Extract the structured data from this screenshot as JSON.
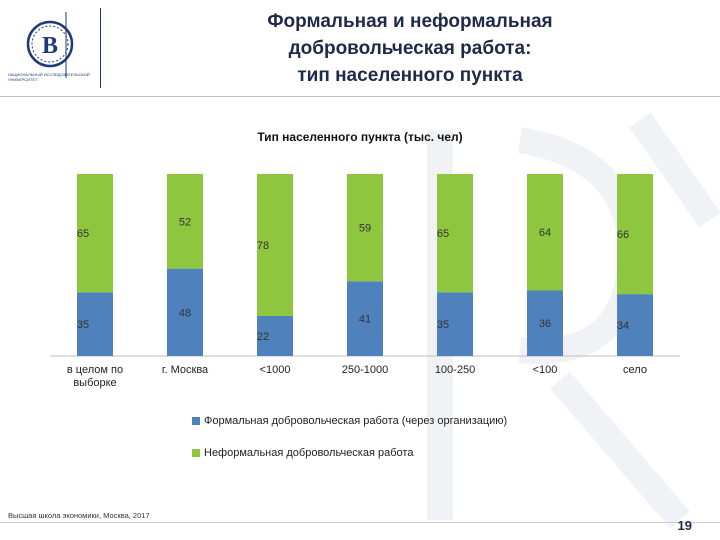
{
  "header": {
    "title_lines": [
      "Формальная и неформальная",
      "добровольческая работа:",
      "тип населенного пункта"
    ],
    "logo_caption": "НАЦИОНАЛЬНЫЙ ИССЛЕДОВАТЕЛЬСКИЙ УНИВЕРСИТЕТ"
  },
  "footer": {
    "source": "Высшая школа экономики, Москва, 2017",
    "page_number": "19"
  },
  "colors": {
    "formal": "#4f81bd",
    "informal": "#8ec63f",
    "title": "#1e2a48"
  },
  "chart_data": {
    "type": "bar",
    "stacked": true,
    "title": "Тип населенного пункта (тыс. чел)",
    "categories": [
      "в целом по выборке",
      "г. Москва",
      "<1000",
      "250-1000",
      "100-250",
      "<100",
      "село"
    ],
    "series": [
      {
        "name": "Формальная добровольческая работа (через организацию)",
        "values": [
          35,
          48,
          22,
          41,
          35,
          36,
          34
        ]
      },
      {
        "name": "Неформальная добровольческая работа",
        "values": [
          65,
          52,
          78,
          59,
          65,
          64,
          66
        ]
      }
    ],
    "ylim": [
      0,
      100
    ],
    "grid": false,
    "legend_position": "bottom"
  }
}
